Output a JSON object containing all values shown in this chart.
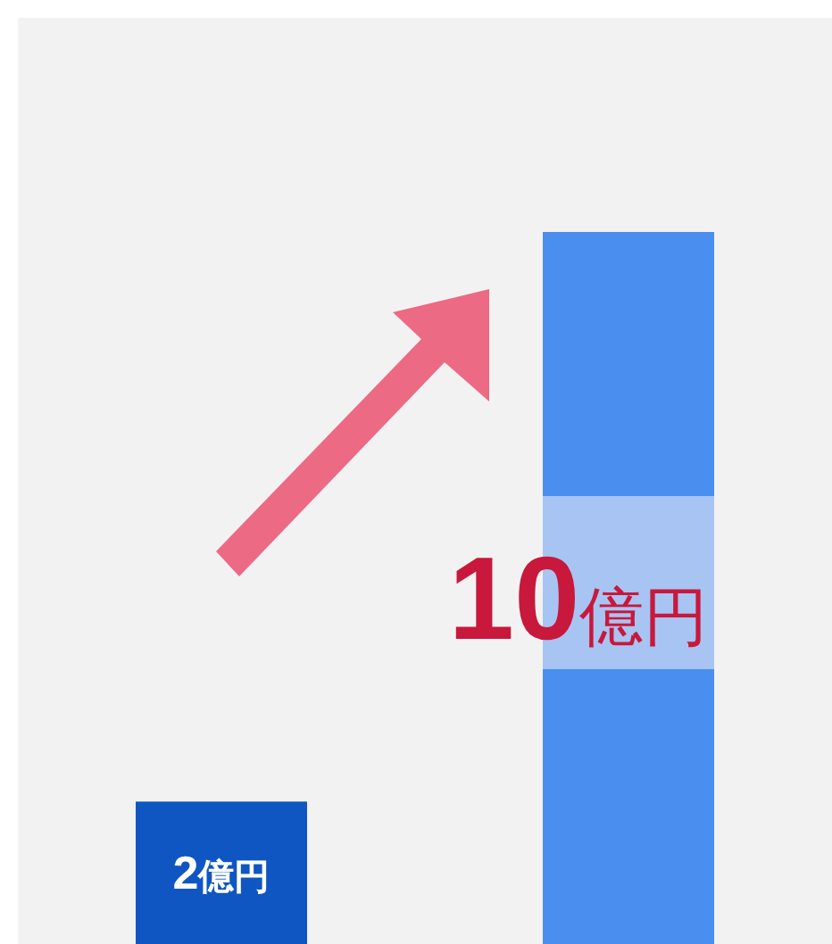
{
  "chart_data": {
    "type": "bar",
    "categories": [
      null,
      null
    ],
    "values": [
      2,
      10
    ],
    "colors": [
      "#0f56c2",
      "#4a8ef0"
    ],
    "value_labels": [
      "2億円",
      "10億円"
    ]
  }
}
